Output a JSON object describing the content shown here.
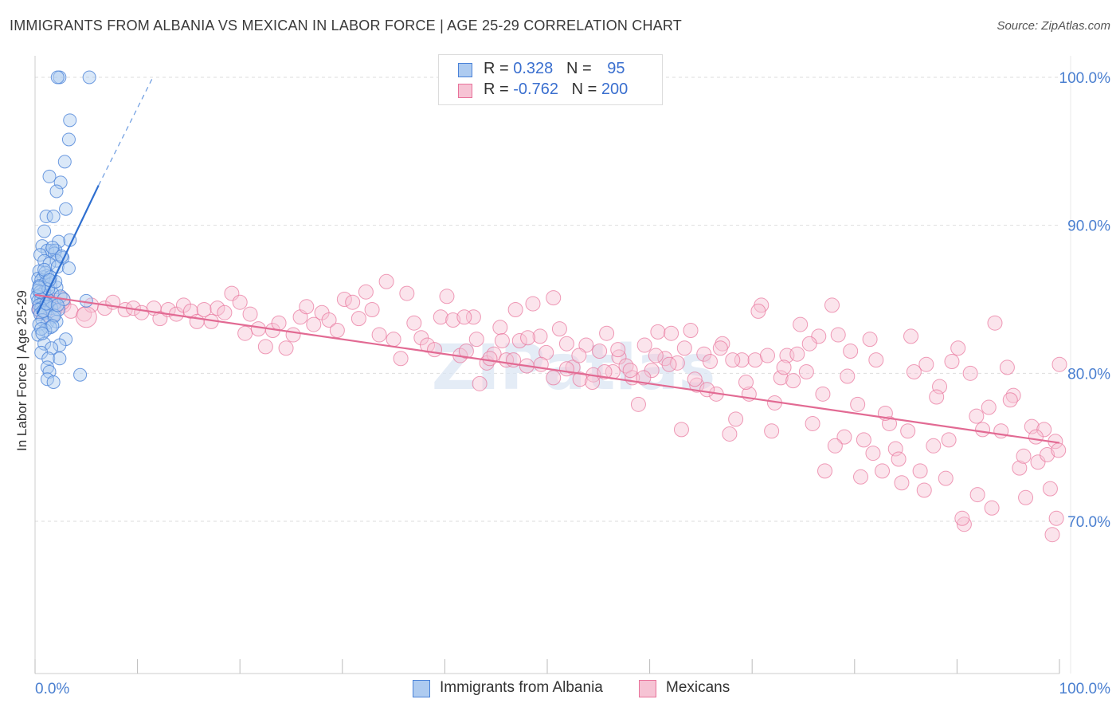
{
  "title": "IMMIGRANTS FROM ALBANIA VS MEXICAN IN LABOR FORCE | AGE 25-29 CORRELATION CHART",
  "source": "Source: ZipAtlas.com",
  "watermark": "ZIPatlas",
  "colors": {
    "blue": "#4a82d8",
    "blue_fill": "#aecbf0",
    "pink": "#e8729a",
    "pink_fill": "#f6c3d4",
    "axis_label": "#4a7fd0",
    "grid": "#dddddd"
  },
  "legend": {
    "rows": [
      {
        "r_label": "R = ",
        "r_value": "0.328",
        "n_label": "N = ",
        "n_value": "95"
      },
      {
        "r_label": "R = ",
        "r_value": "-0.762",
        "n_label": "N = ",
        "n_value": "200"
      }
    ]
  },
  "bottom_legend": [
    "Immigrants from Albania",
    "Mexicans"
  ],
  "chart_data": {
    "type": "scatter",
    "title": "IMMIGRANTS FROM ALBANIA VS MEXICAN IN LABOR FORCE | AGE 25-29 CORRELATION CHART",
    "xlabel": "",
    "ylabel": "In Labor Force | Age 25-29",
    "xlim": [
      0,
      100
    ],
    "ylim": [
      61,
      102
    ],
    "x_tick_labels": [
      "0.0%",
      "100.0%"
    ],
    "y_ticks": [
      70,
      80,
      90,
      100
    ],
    "y_tick_labels": [
      "70.0%",
      "80.0%",
      "90.0%",
      "100.0%"
    ],
    "grid": true,
    "legend_position": "top-center",
    "series": [
      {
        "name": "Immigrants from Albania",
        "r": 0.328,
        "n": 95,
        "trend": {
          "x": [
            0.2,
            6.2
          ],
          "y": [
            84.0,
            92.7
          ],
          "dashed_to": {
            "x": 11.5,
            "y": 100.0
          }
        },
        "points": [
          [
            5.3,
            100
          ],
          [
            2.4,
            100
          ],
          [
            2.2,
            100
          ],
          [
            3.4,
            97.1
          ],
          [
            3.3,
            95.8
          ],
          [
            2.9,
            94.3
          ],
          [
            1.4,
            93.3
          ],
          [
            2.5,
            92.9
          ],
          [
            2.1,
            92.3
          ],
          [
            3.0,
            91.1
          ],
          [
            1.1,
            90.6
          ],
          [
            1.8,
            90.6
          ],
          [
            0.9,
            89.6
          ],
          [
            3.4,
            89.0
          ],
          [
            2.3,
            88.9
          ],
          [
            0.7,
            88.6
          ],
          [
            1.6,
            88.3
          ],
          [
            1.2,
            88.3
          ],
          [
            2.0,
            88.3
          ],
          [
            1.9,
            88.1
          ],
          [
            0.5,
            88.0
          ],
          [
            2.7,
            87.8
          ],
          [
            0.9,
            87.6
          ],
          [
            2.1,
            87.6
          ],
          [
            1.4,
            87.4
          ],
          [
            2.2,
            87.2
          ],
          [
            3.3,
            87.1
          ],
          [
            0.4,
            86.9
          ],
          [
            1.2,
            86.6
          ],
          [
            0.8,
            86.5
          ],
          [
            0.3,
            86.4
          ],
          [
            0.6,
            86.3
          ],
          [
            1.0,
            86.1
          ],
          [
            1.5,
            86.0
          ],
          [
            0.4,
            85.9
          ],
          [
            2.1,
            85.8
          ],
          [
            0.3,
            85.6
          ],
          [
            0.9,
            85.5
          ],
          [
            1.7,
            85.4
          ],
          [
            0.5,
            85.3
          ],
          [
            0.2,
            85.2
          ],
          [
            1.1,
            85.1
          ],
          [
            2.5,
            85.2
          ],
          [
            0.6,
            85.0
          ],
          [
            0.3,
            84.9
          ],
          [
            1.4,
            84.9
          ],
          [
            0.8,
            84.8
          ],
          [
            1.9,
            84.7
          ],
          [
            0.4,
            84.6
          ],
          [
            1.2,
            84.5
          ],
          [
            0.6,
            84.4
          ],
          [
            1.6,
            84.4
          ],
          [
            0.3,
            84.3
          ],
          [
            2.3,
            84.3
          ],
          [
            1.0,
            84.1
          ],
          [
            0.5,
            84.0
          ],
          [
            1.8,
            83.8
          ],
          [
            0.7,
            83.6
          ],
          [
            1.2,
            83.4
          ],
          [
            2.1,
            83.5
          ],
          [
            0.4,
            83.3
          ],
          [
            1.5,
            83.1
          ],
          [
            1.0,
            82.9
          ],
          [
            0.3,
            82.6
          ],
          [
            3.0,
            82.3
          ],
          [
            0.9,
            82.0
          ],
          [
            2.4,
            81.9
          ],
          [
            1.6,
            81.7
          ],
          [
            0.6,
            81.4
          ],
          [
            1.3,
            81.0
          ],
          [
            2.4,
            81.0
          ],
          [
            1.2,
            80.4
          ],
          [
            1.4,
            80.1
          ],
          [
            4.4,
            79.9
          ],
          [
            1.2,
            79.6
          ],
          [
            1.8,
            79.4
          ],
          [
            5.0,
            84.9
          ],
          [
            0.5,
            85.5
          ],
          [
            1.0,
            86.8
          ],
          [
            1.7,
            88.5
          ],
          [
            2.6,
            87.9
          ],
          [
            0.8,
            84.2
          ],
          [
            1.3,
            85.7
          ],
          [
            2.0,
            86.2
          ],
          [
            0.6,
            83.0
          ],
          [
            1.9,
            83.9
          ],
          [
            1.1,
            84.7
          ],
          [
            2.8,
            85.0
          ],
          [
            0.4,
            85.8
          ],
          [
            1.5,
            86.5
          ],
          [
            0.9,
            87.0
          ],
          [
            2.2,
            84.6
          ],
          [
            1.7,
            83.2
          ],
          [
            0.7,
            82.7
          ],
          [
            1.4,
            86.3
          ]
        ]
      },
      {
        "name": "Mexicans",
        "r": -0.762,
        "n": 200,
        "trend": {
          "x": [
            0,
            100
          ],
          "y": [
            85.3,
            75.3
          ]
        },
        "points": [
          [
            0.5,
            84.3
          ],
          [
            1.2,
            85.0
          ],
          [
            2.0,
            84.8
          ],
          [
            2.8,
            84.6
          ],
          [
            3.5,
            84.2
          ],
          [
            4.8,
            84.0
          ],
          [
            5.5,
            84.6
          ],
          [
            6.8,
            84.4
          ],
          [
            7.6,
            84.8
          ],
          [
            8.8,
            84.3
          ],
          [
            9.6,
            84.4
          ],
          [
            10.4,
            84.1
          ],
          [
            11.6,
            84.4
          ],
          [
            12.2,
            83.7
          ],
          [
            13.0,
            84.3
          ],
          [
            13.8,
            84.0
          ],
          [
            14.5,
            84.6
          ],
          [
            15.2,
            84.2
          ],
          [
            15.8,
            83.5
          ],
          [
            16.5,
            84.3
          ],
          [
            17.2,
            83.5
          ],
          [
            17.8,
            84.4
          ],
          [
            18.5,
            84.1
          ],
          [
            19.2,
            85.4
          ],
          [
            20.0,
            84.8
          ],
          [
            20.5,
            82.7
          ],
          [
            21.0,
            84.0
          ],
          [
            21.8,
            83.0
          ],
          [
            22.5,
            81.8
          ],
          [
            23.2,
            82.9
          ],
          [
            23.8,
            83.4
          ],
          [
            24.5,
            81.7
          ],
          [
            25.2,
            82.6
          ],
          [
            25.9,
            83.8
          ],
          [
            26.5,
            84.5
          ],
          [
            27.2,
            83.3
          ],
          [
            28.0,
            84.1
          ],
          [
            28.7,
            83.6
          ],
          [
            29.5,
            82.9
          ],
          [
            30.2,
            85.0
          ],
          [
            31.0,
            84.8
          ],
          [
            31.6,
            83.7
          ],
          [
            32.3,
            85.5
          ],
          [
            32.9,
            84.3
          ],
          [
            33.6,
            82.6
          ],
          [
            34.3,
            86.2
          ],
          [
            35.0,
            82.3
          ],
          [
            35.7,
            81.0
          ],
          [
            36.3,
            85.4
          ],
          [
            37.0,
            83.4
          ],
          [
            37.7,
            82.4
          ],
          [
            38.3,
            81.9
          ],
          [
            39.0,
            81.6
          ],
          [
            39.6,
            83.8
          ],
          [
            40.2,
            85.2
          ],
          [
            40.8,
            83.6
          ],
          [
            41.5,
            81.2
          ],
          [
            42.1,
            81.5
          ],
          [
            42.8,
            83.8
          ],
          [
            43.4,
            79.3
          ],
          [
            44.1,
            80.7
          ],
          [
            44.8,
            81.3
          ],
          [
            45.4,
            83.1
          ],
          [
            46.0,
            80.9
          ],
          [
            46.7,
            80.9
          ],
          [
            47.3,
            82.2
          ],
          [
            48.0,
            80.5
          ],
          [
            48.6,
            84.7
          ],
          [
            49.3,
            82.5
          ],
          [
            49.9,
            81.4
          ],
          [
            50.6,
            79.7
          ],
          [
            51.2,
            83.0
          ],
          [
            51.9,
            82.0
          ],
          [
            52.5,
            80.4
          ],
          [
            53.2,
            79.6
          ],
          [
            53.8,
            81.9
          ],
          [
            54.5,
            79.9
          ],
          [
            55.1,
            81.5
          ],
          [
            55.8,
            82.7
          ],
          [
            56.4,
            80.1
          ],
          [
            57.0,
            81.1
          ],
          [
            57.7,
            80.5
          ],
          [
            58.3,
            79.7
          ],
          [
            58.9,
            77.9
          ],
          [
            59.5,
            81.9
          ],
          [
            60.2,
            80.2
          ],
          [
            60.8,
            82.8
          ],
          [
            61.5,
            81.0
          ],
          [
            62.1,
            82.7
          ],
          [
            62.7,
            80.7
          ],
          [
            63.4,
            81.7
          ],
          [
            64.0,
            82.9
          ],
          [
            64.6,
            79.2
          ],
          [
            65.3,
            81.3
          ],
          [
            65.9,
            80.8
          ],
          [
            66.5,
            78.6
          ],
          [
            67.1,
            82.0
          ],
          [
            67.8,
            75.9
          ],
          [
            68.4,
            76.9
          ],
          [
            69.0,
            80.9
          ],
          [
            69.7,
            78.6
          ],
          [
            70.3,
            80.9
          ],
          [
            70.9,
            84.6
          ],
          [
            71.5,
            81.2
          ],
          [
            72.2,
            78.0
          ],
          [
            72.8,
            79.7
          ],
          [
            73.4,
            81.2
          ],
          [
            74.0,
            79.5
          ],
          [
            74.7,
            83.3
          ],
          [
            75.3,
            80.1
          ],
          [
            75.9,
            76.6
          ],
          [
            76.5,
            82.5
          ],
          [
            77.1,
            73.4
          ],
          [
            77.8,
            84.6
          ],
          [
            78.4,
            82.6
          ],
          [
            79.0,
            75.7
          ],
          [
            79.6,
            81.5
          ],
          [
            80.3,
            77.9
          ],
          [
            80.9,
            75.5
          ],
          [
            81.5,
            82.3
          ],
          [
            82.1,
            80.9
          ],
          [
            82.7,
            73.4
          ],
          [
            83.4,
            76.6
          ],
          [
            84.0,
            74.9
          ],
          [
            84.6,
            72.6
          ],
          [
            85.2,
            76.1
          ],
          [
            85.8,
            80.1
          ],
          [
            86.4,
            73.4
          ],
          [
            87.0,
            80.6
          ],
          [
            87.7,
            75.1
          ],
          [
            88.3,
            79.1
          ],
          [
            88.9,
            72.9
          ],
          [
            89.5,
            80.8
          ],
          [
            90.1,
            81.7
          ],
          [
            90.7,
            69.8
          ],
          [
            91.3,
            80.0
          ],
          [
            91.9,
            77.1
          ],
          [
            92.5,
            76.2
          ],
          [
            93.1,
            77.7
          ],
          [
            93.7,
            83.4
          ],
          [
            94.3,
            76.1
          ],
          [
            94.9,
            80.4
          ],
          [
            95.5,
            78.5
          ],
          [
            96.1,
            73.6
          ],
          [
            96.7,
            71.6
          ],
          [
            97.3,
            76.4
          ],
          [
            97.9,
            74.0
          ],
          [
            98.5,
            76.2
          ],
          [
            99.1,
            72.2
          ],
          [
            99.7,
            70.2
          ],
          [
            100.0,
            80.6
          ],
          [
            96.5,
            74.4
          ],
          [
            97.7,
            75.7
          ],
          [
            98.8,
            74.5
          ],
          [
            99.3,
            69.1
          ],
          [
            99.6,
            75.4
          ],
          [
            99.9,
            74.8
          ],
          [
            95.2,
            78.2
          ],
          [
            93.4,
            70.9
          ],
          [
            92.0,
            71.8
          ],
          [
            90.5,
            70.2
          ],
          [
            89.2,
            75.5
          ],
          [
            88.0,
            78.4
          ],
          [
            86.8,
            72.1
          ],
          [
            85.5,
            82.5
          ],
          [
            84.3,
            74.2
          ],
          [
            83.0,
            77.3
          ],
          [
            81.8,
            74.6
          ],
          [
            80.6,
            73.0
          ],
          [
            79.3,
            79.8
          ],
          [
            78.1,
            75.1
          ],
          [
            76.9,
            78.6
          ],
          [
            75.6,
            82.0
          ],
          [
            74.4,
            81.3
          ],
          [
            73.1,
            80.4
          ],
          [
            71.9,
            76.1
          ],
          [
            70.6,
            84.2
          ],
          [
            69.4,
            79.4
          ],
          [
            68.1,
            80.9
          ],
          [
            66.9,
            81.7
          ],
          [
            65.6,
            78.9
          ],
          [
            64.4,
            79.6
          ],
          [
            63.1,
            76.2
          ],
          [
            61.9,
            80.6
          ],
          [
            60.6,
            81.2
          ],
          [
            59.4,
            79.7
          ],
          [
            58.1,
            80.2
          ],
          [
            56.9,
            81.6
          ],
          [
            55.6,
            80.1
          ],
          [
            54.4,
            79.4
          ],
          [
            53.1,
            81.2
          ],
          [
            51.9,
            80.3
          ],
          [
            50.6,
            85.1
          ],
          [
            49.4,
            80.6
          ],
          [
            48.1,
            82.4
          ],
          [
            46.9,
            84.3
          ],
          [
            45.6,
            82.2
          ],
          [
            44.4,
            81.0
          ],
          [
            43.1,
            82.3
          ],
          [
            41.9,
            83.8
          ]
        ]
      }
    ]
  }
}
